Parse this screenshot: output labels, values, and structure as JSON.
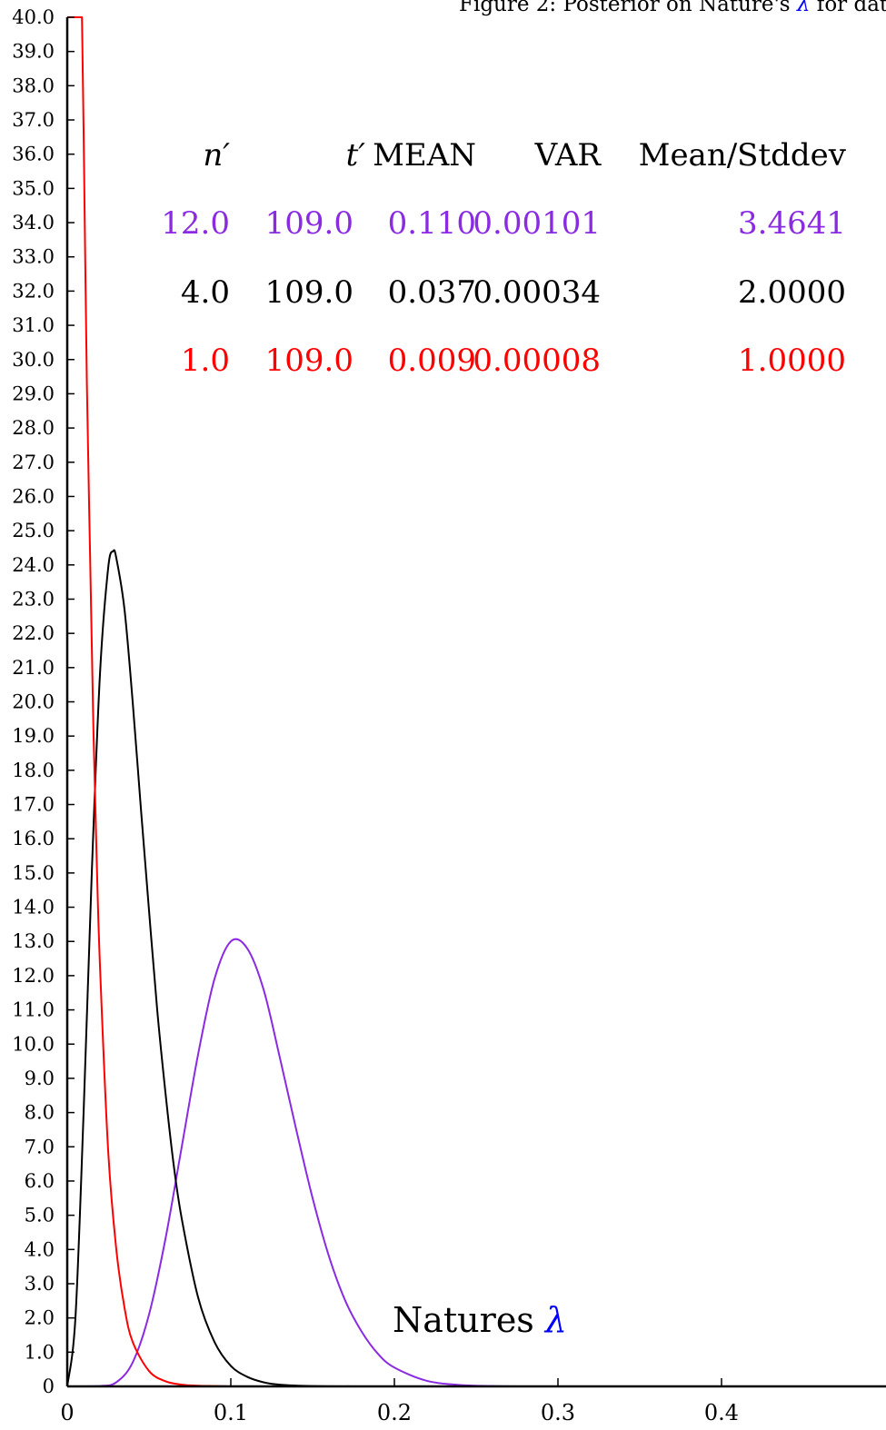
{
  "chart_data": {
    "type": "line",
    "title": {
      "prefix": "Figure 2: Posterior on Nature's ",
      "symbol": "λ",
      "suffix": " for data in Ta"
    },
    "xlabel": {
      "text": "Natures ",
      "symbol": "λ"
    },
    "ylabel": "",
    "xlim": [
      0,
      0.5
    ],
    "ylim": [
      0,
      40
    ],
    "x_ticks": [
      "0",
      "0.1",
      "0.2",
      "0.3",
      "0.4"
    ],
    "x_tick_values": [
      0,
      0.1,
      0.2,
      0.3,
      0.4
    ],
    "y_ticks": [
      "0",
      "1.0",
      "2.0",
      "3.0",
      "4.0",
      "5.0",
      "6.0",
      "7.0",
      "8.0",
      "9.0",
      "10.0",
      "11.0",
      "12.0",
      "13.0",
      "14.0",
      "15.0",
      "16.0",
      "17.0",
      "18.0",
      "19.0",
      "20.0",
      "21.0",
      "22.0",
      "23.0",
      "24.0",
      "25.0",
      "26.0",
      "27.0",
      "28.0",
      "29.0",
      "30.0",
      "31.0",
      "32.0",
      "33.0",
      "34.0",
      "35.0",
      "36.0",
      "37.0",
      "38.0",
      "39.0",
      "40.0"
    ],
    "grid": false,
    "series": [
      {
        "n": 12.0,
        "t": 109.0,
        "color": "#8a2be2",
        "x": [
          0.0,
          0.02,
          0.03,
          0.04,
          0.05,
          0.06,
          0.07,
          0.08,
          0.09,
          0.1,
          0.11,
          0.12,
          0.13,
          0.14,
          0.15,
          0.16,
          0.17,
          0.18,
          0.19,
          0.2,
          0.22,
          0.24,
          0.26,
          0.28
        ],
        "y": [
          0.0,
          0.01,
          0.12,
          0.7,
          2.1,
          4.3,
          7.0,
          9.7,
          11.9,
          13.0,
          12.8,
          11.6,
          9.6,
          7.5,
          5.5,
          3.8,
          2.5,
          1.6,
          0.95,
          0.55,
          0.16,
          0.04,
          0.01,
          0.0
        ]
      },
      {
        "n": 4.0,
        "t": 109.0,
        "color": "#000000",
        "x": [
          0.0,
          0.005,
          0.01,
          0.015,
          0.02,
          0.025,
          0.028,
          0.03,
          0.035,
          0.04,
          0.045,
          0.05,
          0.055,
          0.06,
          0.065,
          0.07,
          0.08,
          0.09,
          0.1,
          0.11,
          0.12,
          0.13,
          0.15,
          0.18
        ],
        "y": [
          0.0,
          2.0,
          8.0,
          15.0,
          20.8,
          23.9,
          24.4,
          24.2,
          22.7,
          20.0,
          16.9,
          13.9,
          11.0,
          8.6,
          6.5,
          4.9,
          2.6,
          1.3,
          0.6,
          0.28,
          0.12,
          0.05,
          0.01,
          0.0
        ]
      },
      {
        "n": 1.0,
        "t": 109.0,
        "color": "#ff0000",
        "x": [
          0.0,
          0.002,
          0.004,
          0.006,
          0.008,
          0.009,
          0.01,
          0.012,
          0.014,
          0.016,
          0.018,
          0.02,
          0.025,
          0.03,
          0.035,
          0.04,
          0.05,
          0.06,
          0.07,
          0.08,
          0.09,
          0.1
        ],
        "y": [
          40.0,
          40.0,
          40.0,
          40.0,
          40.0,
          40.0,
          36.7,
          29.3,
          24.2,
          19.2,
          15.4,
          12.3,
          6.9,
          4.0,
          2.3,
          1.3,
          0.45,
          0.15,
          0.05,
          0.02,
          0.01,
          0.0
        ]
      }
    ]
  },
  "table": {
    "headers": {
      "n": "n′",
      "t": "t′",
      "mean": "MEAN",
      "var": "VAR",
      "ratio": "Mean/Stddev"
    },
    "rows": [
      {
        "n": "12.0",
        "t": "109.0",
        "mean": "0.110",
        "var": "0.00101",
        "ratio": "3.4641",
        "color": "#8a2be2"
      },
      {
        "n": "4.0",
        "t": "109.0",
        "mean": "0.037",
        "var": "0.00034",
        "ratio": "2.0000",
        "color": "#000000"
      },
      {
        "n": "1.0",
        "t": "109.0",
        "mean": "0.009",
        "var": "0.00008",
        "ratio": "1.0000",
        "color": "#ff0000"
      }
    ]
  },
  "colors": {
    "lambda": "#0000ff",
    "axis": "#000000"
  }
}
